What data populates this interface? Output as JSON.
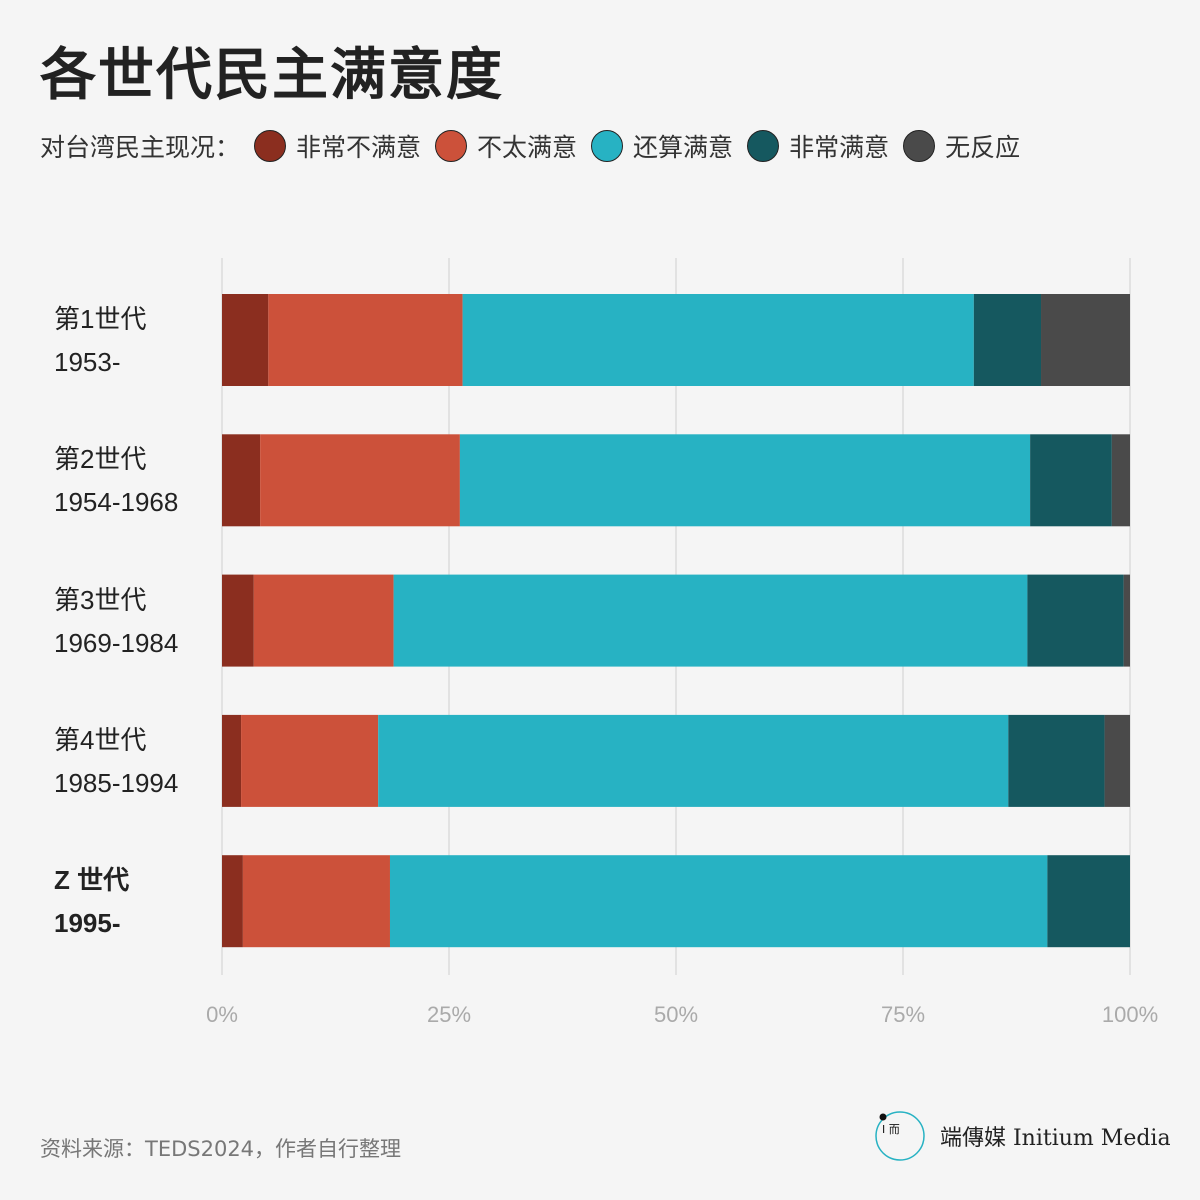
{
  "title": "各世代民主满意度",
  "legend": {
    "label": "对台湾民主现况：",
    "items": [
      {
        "label": "非常不满意",
        "color": "#8b2e1f"
      },
      {
        "label": "不太满意",
        "color": "#cc513a"
      },
      {
        "label": "还算满意",
        "color": "#27b2c3"
      },
      {
        "label": "非常满意",
        "color": "#15585f"
      },
      {
        "label": "无反应",
        "color": "#4a4a4a"
      }
    ]
  },
  "chart_data": {
    "type": "bar",
    "orientation": "horizontal",
    "stacked": true,
    "categories": [
      {
        "name": "第1世代",
        "years": "1953-"
      },
      {
        "name": "第2世代",
        "years": "1954-1968"
      },
      {
        "name": "第3世代",
        "years": "1969-1984"
      },
      {
        "name": "第4世代",
        "years": "1985-1994"
      },
      {
        "name": "Z 世代",
        "years": "1995-"
      }
    ],
    "series": [
      {
        "name": "非常不满意",
        "values": [
          5.1,
          4.2,
          3.5,
          2.1,
          2.3
        ]
      },
      {
        "name": "不太满意",
        "values": [
          21.4,
          22.0,
          15.4,
          15.1,
          16.2
        ]
      },
      {
        "name": "还算满意",
        "values": [
          56.3,
          62.8,
          69.8,
          69.4,
          72.4
        ]
      },
      {
        "name": "非常满意",
        "values": [
          7.4,
          9.0,
          10.6,
          10.6,
          9.1
        ]
      },
      {
        "name": "无反应",
        "values": [
          9.8,
          2.0,
          0.7,
          2.8,
          0
        ]
      }
    ],
    "xlim": [
      0,
      100
    ],
    "xticks": [
      "0%",
      "25%",
      "50%",
      "75%",
      "100%"
    ],
    "grid": true
  },
  "source": "资料来源：TEDS2024，作者自行整理",
  "brand": {
    "name": "端傳媒 Initium Media",
    "accent": "#27b2c3"
  }
}
